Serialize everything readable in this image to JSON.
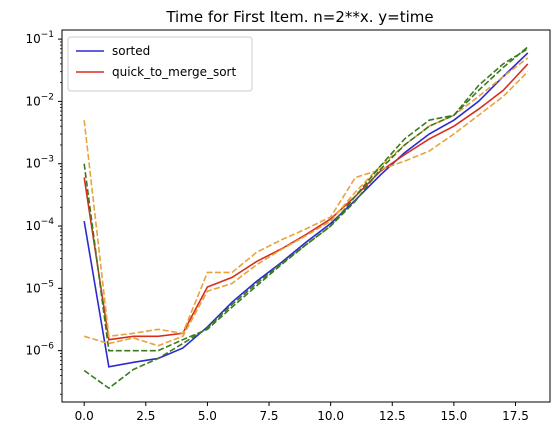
{
  "chart_data": {
    "type": "line",
    "title": "Time for First Item. n=2**x. y=time",
    "xlabel": "",
    "ylabel": "",
    "yscale": "log",
    "xlim": [
      -0.9,
      18.9
    ],
    "ylim": [
      1.5e-07,
      0.14
    ],
    "grid": false,
    "legend_placement": "top-left",
    "x_ticks": [
      "0.0",
      "2.5",
      "5.0",
      "7.5",
      "10.0",
      "12.5",
      "15.0",
      "17.5"
    ],
    "x_tick_values": [
      0,
      2.5,
      5,
      7.5,
      10,
      12.5,
      15,
      17.5
    ],
    "y_ticks": [
      {
        "exp": "-6",
        "value": 1e-06
      },
      {
        "exp": "-5",
        "value": 1e-05
      },
      {
        "exp": "-4",
        "value": 0.0001
      },
      {
        "exp": "-3",
        "value": 0.001
      },
      {
        "exp": "-2",
        "value": 0.01
      },
      {
        "exp": "-1",
        "value": 0.1
      }
    ],
    "x": [
      0,
      1,
      2,
      3,
      4,
      5,
      6,
      7,
      8,
      9,
      10,
      11,
      12,
      13,
      14,
      15,
      16,
      17,
      18
    ],
    "series": [
      {
        "name": "sorted",
        "color": "#2b2bcc",
        "dashed": false,
        "in_legend": true,
        "values": [
          0.00012,
          5.5e-07,
          6.5e-07,
          7.5e-07,
          1.1e-06,
          2.4e-06,
          6e-06,
          1.3e-05,
          2.6e-05,
          5.5e-05,
          0.00011,
          0.00026,
          0.00065,
          0.0015,
          0.003,
          0.005,
          0.01,
          0.025,
          0.06
        ]
      },
      {
        "name": "quick_to_merge_sort",
        "color": "#d62f1f",
        "dashed": false,
        "in_legend": true,
        "values": [
          0.0006,
          1.5e-06,
          1.7e-06,
          1.7e-06,
          1.9e-06,
          1.05e-05,
          1.5e-05,
          2.7e-05,
          4.3e-05,
          7.3e-05,
          0.00013,
          0.0003,
          0.00075,
          0.0014,
          0.0025,
          0.004,
          0.0075,
          0.015,
          0.04
        ]
      },
      {
        "name": "",
        "color": "#e8a33a",
        "dashed": true,
        "in_legend": false,
        "values": [
          0.005,
          1.7e-06,
          1.9e-06,
          2.2e-06,
          1.9e-06,
          1.8e-05,
          1.8e-05,
          3.8e-05,
          6e-05,
          9e-05,
          0.00014,
          0.0006,
          0.0008,
          0.0011,
          0.0016,
          0.003,
          0.006,
          0.012,
          0.03
        ]
      },
      {
        "name": "",
        "color": "#e8a33a",
        "dashed": true,
        "in_legend": false,
        "values": [
          1.7e-06,
          1.3e-06,
          1.6e-06,
          1.2e-06,
          1.7e-06,
          9e-06,
          1.2e-05,
          2.4e-05,
          4.2e-05,
          7e-05,
          0.00012,
          0.00035,
          0.0009,
          0.002,
          0.004,
          0.006,
          0.012,
          0.025,
          0.05
        ]
      },
      {
        "name": "",
        "color": "#3c7a1f",
        "dashed": true,
        "in_legend": false,
        "values": [
          0.001,
          1e-06,
          1e-06,
          1e-06,
          1.5e-06,
          2.2e-06,
          5e-06,
          1.1e-05,
          2.4e-05,
          5e-05,
          0.0001,
          0.00025,
          0.0008,
          0.002,
          0.004,
          0.006,
          0.015,
          0.035,
          0.075
        ]
      },
      {
        "name": "",
        "color": "#3c7a1f",
        "dashed": true,
        "in_legend": false,
        "values": [
          4.8e-07,
          2.5e-07,
          5e-07,
          7.5e-07,
          1.3e-06,
          2.3e-06,
          5.5e-06,
          1.2e-05,
          2.5e-05,
          5e-05,
          0.0001,
          0.0003,
          0.0009,
          0.0025,
          0.005,
          0.006,
          0.018,
          0.04,
          0.07
        ]
      }
    ]
  }
}
